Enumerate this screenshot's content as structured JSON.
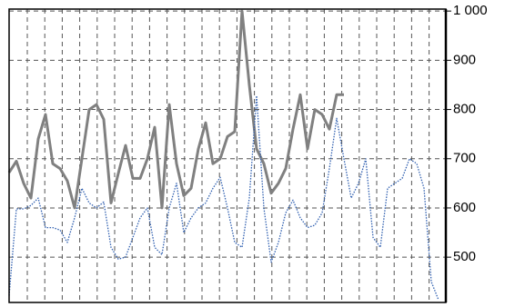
{
  "chart_data": {
    "type": "line",
    "categories": [
      null,
      null,
      null,
      null,
      null,
      null,
      null,
      null,
      null,
      null,
      null,
      null,
      null,
      null,
      null,
      null,
      null,
      null,
      null,
      null,
      null,
      null,
      null,
      null,
      null,
      null,
      null,
      null,
      null,
      null,
      null,
      null,
      null,
      null,
      null,
      null,
      null,
      null,
      null,
      null,
      null,
      null,
      null,
      null,
      null,
      null,
      null,
      null,
      null,
      null,
      null,
      null,
      null,
      null,
      null,
      null,
      null,
      null,
      null,
      null
    ],
    "series": [
      {
        "color": "#808080",
        "values": [
          672,
          695,
          650,
          620,
          740,
          790,
          690,
          680,
          655,
          600,
          700,
          800,
          810,
          780,
          610,
          670,
          727,
          660,
          660,
          700,
          764,
          600,
          810,
          690,
          625,
          640,
          720,
          773,
          690,
          700,
          745,
          755,
          1000,
          850,
          720,
          690,
          630,
          650,
          680,
          760,
          830,
          720,
          800,
          790,
          760,
          830,
          830,
          null,
          null,
          null,
          null,
          null,
          null,
          null,
          null,
          null,
          null,
          null,
          null,
          null
        ]
      },
      {
        "color": "#2f5fb0",
        "values": [
          422,
          598,
          598,
          605,
          620,
          560,
          560,
          555,
          530,
          580,
          640,
          610,
          600,
          612,
          520,
          496,
          500,
          540,
          580,
          600,
          520,
          505,
          600,
          650,
          550,
          580,
          600,
          610,
          640,
          662,
          600,
          530,
          520,
          620,
          828,
          600,
          490,
          530,
          590,
          616,
          580,
          560,
          565,
          590,
          680,
          782,
          700,
          620,
          650,
          700,
          540,
          520,
          640,
          650,
          660,
          700,
          690,
          640,
          450,
          413
        ]
      }
    ],
    "ylim": [
      408,
      1004
    ],
    "yticks": [
      500,
      600,
      700,
      800,
      900,
      {
        "value": 1000,
        "label": "1 000"
      }
    ],
    "grid": true,
    "y_axis_side": "right"
  }
}
